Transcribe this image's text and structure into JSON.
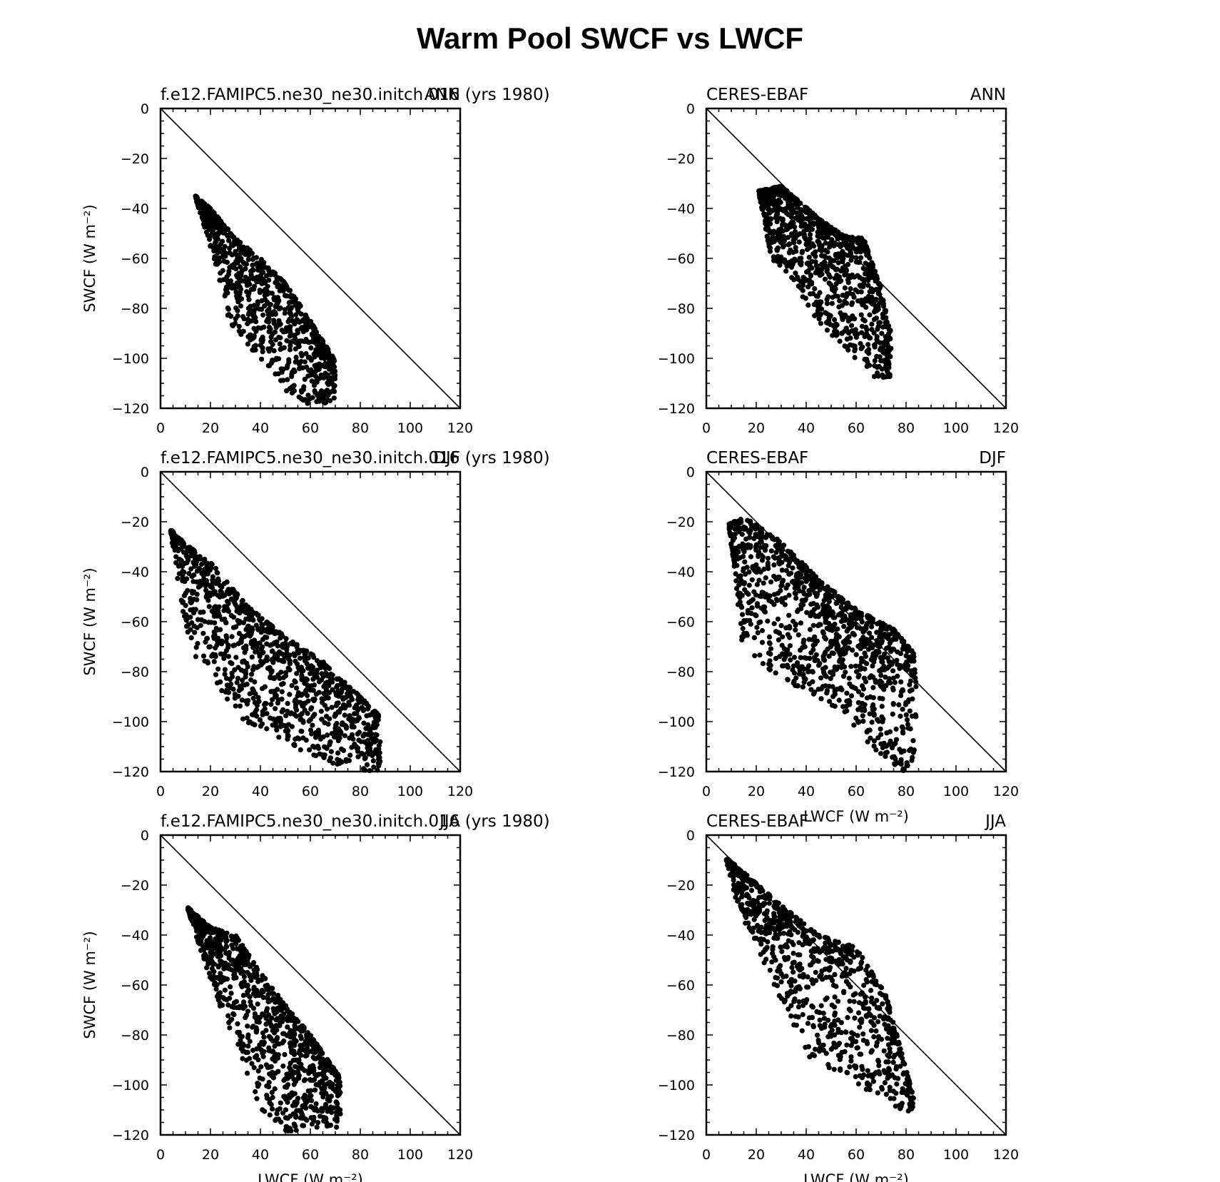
{
  "figure": {
    "title": "Warm Pool SWCF vs LWCF"
  },
  "colors": {
    "ink": "#000000",
    "background": "#ffffff"
  },
  "chart_data": [
    {
      "type": "scatter",
      "title_left": "f.e12.FAMIPC5.ne30_ne30.initch.016 (yrs 1980)",
      "title_right": "ANN",
      "xlabel": "",
      "ylabel": "SWCF (W m⁻²)",
      "xlim": [
        0,
        120
      ],
      "ylim": [
        -120,
        0
      ],
      "xticks": [
        0,
        20,
        40,
        60,
        80,
        100,
        120
      ],
      "yticks": [
        0,
        -20,
        -40,
        -60,
        -80,
        -100,
        -120
      ],
      "reference_line": "y = -x",
      "cloud": {
        "n": 900,
        "seed": 11,
        "upper": [
          [
            14,
            -35
          ],
          [
            20,
            -40
          ],
          [
            30,
            -52
          ],
          [
            40,
            -60
          ],
          [
            50,
            -70
          ],
          [
            60,
            -85
          ],
          [
            70,
            -101
          ]
        ],
        "lower": [
          [
            14,
            -36
          ],
          [
            22,
            -62
          ],
          [
            28,
            -88
          ],
          [
            40,
            -100
          ],
          [
            50,
            -113
          ],
          [
            60,
            -120
          ],
          [
            70,
            -117
          ]
        ]
      }
    },
    {
      "type": "scatter",
      "title_left": "CERES-EBAF",
      "title_right": "ANN",
      "xlabel": "",
      "ylabel": "",
      "xlim": [
        0,
        120
      ],
      "ylim": [
        -120,
        0
      ],
      "xticks": [
        0,
        20,
        40,
        60,
        80,
        100,
        120
      ],
      "yticks": [
        0,
        -20,
        -40,
        -60,
        -80,
        -100,
        -120
      ],
      "reference_line": "y = -x",
      "cloud": {
        "n": 1000,
        "seed": 23,
        "upper": [
          [
            21,
            -33
          ],
          [
            30,
            -31
          ],
          [
            45,
            -44
          ],
          [
            55,
            -51
          ],
          [
            63,
            -52
          ],
          [
            70,
            -72
          ],
          [
            74,
            -90
          ]
        ],
        "lower": [
          [
            21,
            -34
          ],
          [
            26,
            -60
          ],
          [
            35,
            -70
          ],
          [
            45,
            -86
          ],
          [
            55,
            -95
          ],
          [
            62,
            -103
          ],
          [
            68,
            -109
          ]
        ]
      }
    },
    {
      "type": "scatter",
      "title_left": "f.e12.FAMIPC5.ne30_ne30.initch.016 (yrs 1980)",
      "title_right": "DJF",
      "xlabel": "",
      "ylabel": "SWCF (W m⁻²)",
      "xlim": [
        0,
        120
      ],
      "ylim": [
        -120,
        0
      ],
      "xticks": [
        0,
        20,
        40,
        60,
        80,
        100,
        120
      ],
      "yticks": [
        0,
        -20,
        -40,
        -60,
        -80,
        -100,
        -120
      ],
      "reference_line": "y = -x",
      "cloud": {
        "n": 1100,
        "seed": 37,
        "upper": [
          [
            4,
            -23
          ],
          [
            10,
            -29
          ],
          [
            20,
            -36
          ],
          [
            35,
            -54
          ],
          [
            50,
            -66
          ],
          [
            65,
            -76
          ],
          [
            80,
            -90
          ],
          [
            88,
            -98
          ]
        ],
        "lower": [
          [
            4,
            -24
          ],
          [
            7,
            -45
          ],
          [
            12,
            -72
          ],
          [
            20,
            -80
          ],
          [
            30,
            -98
          ],
          [
            45,
            -105
          ],
          [
            60,
            -114
          ],
          [
            72,
            -118
          ],
          [
            82,
            -120
          ]
        ]
      }
    },
    {
      "type": "scatter",
      "title_left": "CERES-EBAF",
      "title_right": "DJF",
      "xlabel": "LWCF (W m⁻²)",
      "ylabel": "",
      "xlim": [
        0,
        120
      ],
      "ylim": [
        -120,
        0
      ],
      "xticks": [
        0,
        20,
        40,
        60,
        80,
        100,
        120
      ],
      "yticks": [
        0,
        -20,
        -40,
        -60,
        -80,
        -100,
        -120
      ],
      "reference_line": "y = -x",
      "cloud": {
        "n": 1100,
        "seed": 51,
        "upper": [
          [
            9,
            -21
          ],
          [
            15,
            -18
          ],
          [
            30,
            -28
          ],
          [
            45,
            -43
          ],
          [
            60,
            -55
          ],
          [
            75,
            -63
          ],
          [
            86,
            -76
          ],
          [
            84,
            -96
          ]
        ],
        "lower": [
          [
            9,
            -22
          ],
          [
            12,
            -46
          ],
          [
            14,
            -67
          ],
          [
            25,
            -82
          ],
          [
            40,
            -88
          ],
          [
            55,
            -96
          ],
          [
            65,
            -110
          ],
          [
            75,
            -118
          ],
          [
            80,
            -120
          ]
        ]
      }
    },
    {
      "type": "scatter",
      "title_left": "f.e12.FAMIPC5.ne30_ne30.initch.016 (yrs 1980)",
      "title_right": "JJA",
      "xlabel": "LWCF (W m⁻²)",
      "ylabel": "SWCF (W m⁻²)",
      "xlim": [
        0,
        120
      ],
      "ylim": [
        -120,
        0
      ],
      "xticks": [
        0,
        20,
        40,
        60,
        80,
        100,
        120
      ],
      "yticks": [
        0,
        -20,
        -40,
        -60,
        -80,
        -100,
        -120
      ],
      "reference_line": "y = -x",
      "cloud": {
        "n": 1000,
        "seed": 67,
        "upper": [
          [
            11,
            -29
          ],
          [
            20,
            -37
          ],
          [
            30,
            -40
          ],
          [
            40,
            -55
          ],
          [
            50,
            -68
          ],
          [
            60,
            -80
          ],
          [
            72,
            -97
          ]
        ],
        "lower": [
          [
            11,
            -30
          ],
          [
            18,
            -52
          ],
          [
            25,
            -72
          ],
          [
            32,
            -88
          ],
          [
            40,
            -110
          ],
          [
            50,
            -120
          ],
          [
            60,
            -117
          ]
        ]
      }
    },
    {
      "type": "scatter",
      "title_left": "CERES-EBAF",
      "title_right": "JJA",
      "xlabel": "LWCF (W m⁻²)",
      "ylabel": "",
      "xlim": [
        0,
        120
      ],
      "ylim": [
        -120,
        0
      ],
      "xticks": [
        0,
        20,
        40,
        60,
        80,
        100,
        120
      ],
      "yticks": [
        0,
        -20,
        -40,
        -60,
        -80,
        -100,
        -120
      ],
      "reference_line": "y = -x",
      "cloud": {
        "n": 900,
        "seed": 89,
        "upper": [
          [
            8,
            -9
          ],
          [
            15,
            -15
          ],
          [
            30,
            -28
          ],
          [
            45,
            -40
          ],
          [
            60,
            -45
          ],
          [
            72,
            -64
          ],
          [
            83,
            -105
          ]
        ],
        "lower": [
          [
            8,
            -10
          ],
          [
            12,
            -28
          ],
          [
            20,
            -44
          ],
          [
            30,
            -68
          ],
          [
            40,
            -88
          ],
          [
            55,
            -97
          ],
          [
            65,
            -105
          ],
          [
            80,
            -111
          ]
        ]
      }
    }
  ]
}
